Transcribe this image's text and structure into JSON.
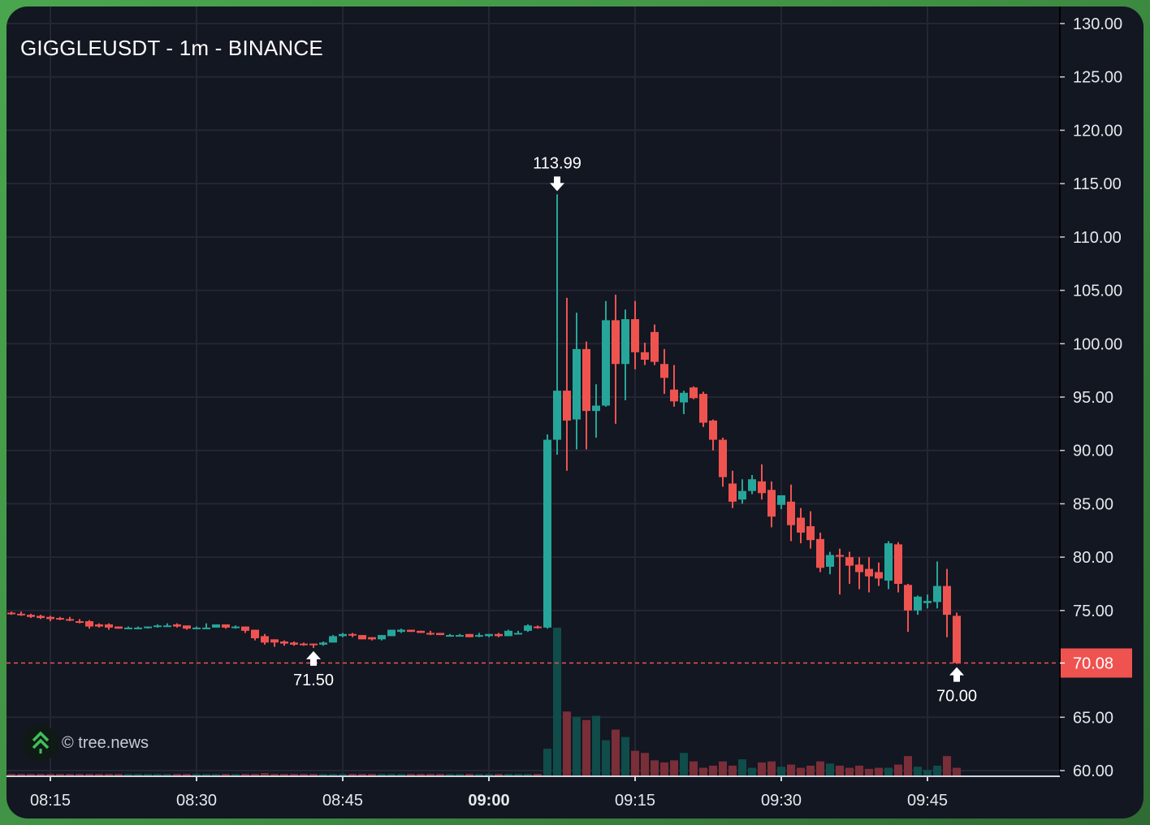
{
  "header": {
    "title": "GIGGLEUSDT - 1m - BINANCE"
  },
  "watermark": {
    "text": "© tree.news",
    "icon": "tree-chevrons-icon",
    "icon_color": "#3fbf5a"
  },
  "colors": {
    "background": "#131722",
    "grid": "#242733",
    "up": "#26a69a",
    "down": "#ef5350",
    "volume_up": "#0f4c4a",
    "volume_down": "#7a2e38",
    "last_price_line": "#ef5350",
    "outer_frame": "#4aa64e"
  },
  "price_axis": {
    "labels": [
      "130.00",
      "125.00",
      "120.00",
      "115.00",
      "110.00",
      "105.00",
      "100.00",
      "95.00",
      "90.00",
      "85.00",
      "80.00",
      "75.00",
      "65.00",
      "60.00"
    ],
    "last_price_label": "70.08"
  },
  "time_axis": {
    "labels": [
      {
        "text": "08:15",
        "bold": false
      },
      {
        "text": "08:30",
        "bold": false
      },
      {
        "text": "08:45",
        "bold": false
      },
      {
        "text": "09:00",
        "bold": true
      },
      {
        "text": "09:15",
        "bold": false
      },
      {
        "text": "09:30",
        "bold": false
      },
      {
        "text": "09:45",
        "bold": false
      }
    ]
  },
  "annotations": {
    "high": {
      "label": "113.99",
      "time": "09:07"
    },
    "low_left": {
      "label": "71.50",
      "time": "08:42"
    },
    "low_right": {
      "label": "70.00",
      "time": "09:48"
    }
  },
  "chart_data": {
    "type": "candlestick",
    "title": "GIGGLEUSDT - 1m - BINANCE",
    "xlabel": "",
    "ylabel": "",
    "ylim": [
      60,
      130
    ],
    "y_ticks": [
      60,
      65,
      70,
      75,
      80,
      85,
      90,
      95,
      100,
      105,
      110,
      115,
      120,
      125,
      130
    ],
    "x_ticks": [
      "08:15",
      "08:30",
      "08:45",
      "09:00",
      "09:15",
      "09:30",
      "09:45"
    ],
    "grid": true,
    "last_price": 70.08,
    "annotations": [
      {
        "text": "113.99",
        "type": "high-marker",
        "time": "09:07"
      },
      {
        "text": "71.50",
        "type": "low-marker",
        "time": "08:42"
      },
      {
        "text": "70.00",
        "type": "low-marker",
        "time": "09:48"
      }
    ],
    "candles": [
      {
        "t": "08:11",
        "o": 74.8,
        "h": 74.9,
        "c": 74.7,
        "l": 74.6,
        "v": 1
      },
      {
        "t": "08:12",
        "o": 74.7,
        "h": 74.9,
        "c": 74.6,
        "l": 74.5,
        "v": 1
      },
      {
        "t": "08:13",
        "o": 74.6,
        "h": 74.7,
        "c": 74.4,
        "l": 74.3,
        "v": 1
      },
      {
        "t": "08:14",
        "o": 74.5,
        "h": 74.6,
        "c": 74.3,
        "l": 74.2,
        "v": 1
      },
      {
        "t": "08:15",
        "o": 74.4,
        "h": 74.5,
        "c": 74.2,
        "l": 74.0,
        "v": 1
      },
      {
        "t": "08:16",
        "o": 74.3,
        "h": 74.4,
        "c": 74.2,
        "l": 74.1,
        "v": 1
      },
      {
        "t": "08:17",
        "o": 74.2,
        "h": 74.4,
        "c": 74.1,
        "l": 74.0,
        "v": 1
      },
      {
        "t": "08:18",
        "o": 74.0,
        "h": 74.2,
        "c": 73.9,
        "l": 73.8,
        "v": 1
      },
      {
        "t": "08:19",
        "o": 74.0,
        "h": 74.1,
        "c": 73.5,
        "l": 73.3,
        "v": 2
      },
      {
        "t": "08:20",
        "o": 73.7,
        "h": 73.8,
        "c": 73.5,
        "l": 73.4,
        "v": 1
      },
      {
        "t": "08:21",
        "o": 73.7,
        "h": 73.8,
        "c": 73.4,
        "l": 73.2,
        "v": 1
      },
      {
        "t": "08:22",
        "o": 73.5,
        "h": 73.5,
        "c": 73.3,
        "l": 73.3,
        "v": 1
      },
      {
        "t": "08:23",
        "o": 73.4,
        "h": 73.5,
        "c": 73.4,
        "l": 73.3,
        "v": 1
      },
      {
        "t": "08:24",
        "o": 73.4,
        "h": 73.5,
        "c": 73.4,
        "l": 73.3,
        "v": 1
      },
      {
        "t": "08:25",
        "o": 73.4,
        "h": 73.5,
        "c": 73.5,
        "l": 73.3,
        "v": 1
      },
      {
        "t": "08:26",
        "o": 73.5,
        "h": 73.7,
        "c": 73.6,
        "l": 73.4,
        "v": 1
      },
      {
        "t": "08:27",
        "o": 73.5,
        "h": 73.8,
        "c": 73.6,
        "l": 73.5,
        "v": 1
      },
      {
        "t": "08:28",
        "o": 73.7,
        "h": 73.8,
        "c": 73.5,
        "l": 73.4,
        "v": 1
      },
      {
        "t": "08:29",
        "o": 73.6,
        "h": 73.6,
        "c": 73.3,
        "l": 73.2,
        "v": 1
      },
      {
        "t": "08:30",
        "o": 73.3,
        "h": 73.5,
        "c": 73.4,
        "l": 73.3,
        "v": 1
      },
      {
        "t": "08:31",
        "o": 73.4,
        "h": 73.8,
        "c": 73.4,
        "l": 73.3,
        "v": 1
      },
      {
        "t": "08:32",
        "o": 73.4,
        "h": 73.7,
        "c": 73.7,
        "l": 73.4,
        "v": 1
      },
      {
        "t": "08:33",
        "o": 73.7,
        "h": 73.7,
        "c": 73.4,
        "l": 73.3,
        "v": 1
      },
      {
        "t": "08:34",
        "o": 73.4,
        "h": 73.6,
        "c": 73.5,
        "l": 73.3,
        "v": 1
      },
      {
        "t": "08:35",
        "o": 73.5,
        "h": 73.5,
        "c": 73.1,
        "l": 72.9,
        "v": 1
      },
      {
        "t": "08:36",
        "o": 73.2,
        "h": 73.2,
        "c": 72.4,
        "l": 72.2,
        "v": 2
      },
      {
        "t": "08:37",
        "o": 72.6,
        "h": 72.8,
        "c": 72.0,
        "l": 71.8,
        "v": 3
      },
      {
        "t": "08:38",
        "o": 72.3,
        "h": 72.3,
        "c": 72.0,
        "l": 71.6,
        "v": 2
      },
      {
        "t": "08:39",
        "o": 72.1,
        "h": 72.2,
        "c": 71.9,
        "l": 71.7,
        "v": 2
      },
      {
        "t": "08:40",
        "o": 72.0,
        "h": 72.1,
        "c": 71.8,
        "l": 71.7,
        "v": 1
      },
      {
        "t": "08:41",
        "o": 71.9,
        "h": 72.0,
        "c": 71.8,
        "l": 71.7,
        "v": 1
      },
      {
        "t": "08:42",
        "o": 71.9,
        "h": 71.9,
        "c": 71.8,
        "l": 71.5,
        "v": 1
      },
      {
        "t": "08:43",
        "o": 71.8,
        "h": 72.1,
        "c": 72.0,
        "l": 71.7,
        "v": 1
      },
      {
        "t": "08:44",
        "o": 72.0,
        "h": 72.7,
        "c": 72.6,
        "l": 72.0,
        "v": 2
      },
      {
        "t": "08:45",
        "o": 72.6,
        "h": 72.9,
        "c": 72.8,
        "l": 72.5,
        "v": 2
      },
      {
        "t": "08:46",
        "o": 72.8,
        "h": 72.9,
        "c": 72.7,
        "l": 72.5,
        "v": 1
      },
      {
        "t": "08:47",
        "o": 72.7,
        "h": 72.7,
        "c": 72.3,
        "l": 72.3,
        "v": 1
      },
      {
        "t": "08:48",
        "o": 72.5,
        "h": 72.5,
        "c": 72.3,
        "l": 72.2,
        "v": 1
      },
      {
        "t": "08:49",
        "o": 72.3,
        "h": 72.7,
        "c": 72.7,
        "l": 72.2,
        "v": 1
      },
      {
        "t": "08:50",
        "o": 72.6,
        "h": 73.2,
        "c": 73.2,
        "l": 72.6,
        "v": 1
      },
      {
        "t": "08:51",
        "o": 73.0,
        "h": 73.3,
        "c": 73.2,
        "l": 72.9,
        "v": 1
      },
      {
        "t": "08:52",
        "o": 73.2,
        "h": 73.2,
        "c": 73.0,
        "l": 73.0,
        "v": 1
      },
      {
        "t": "08:53",
        "o": 73.1,
        "h": 73.1,
        "c": 72.9,
        "l": 72.9,
        "v": 1
      },
      {
        "t": "08:54",
        "o": 72.9,
        "h": 73.1,
        "c": 72.8,
        "l": 72.7,
        "v": 1
      },
      {
        "t": "08:55",
        "o": 72.9,
        "h": 72.9,
        "c": 72.7,
        "l": 72.7,
        "v": 1
      },
      {
        "t": "08:56",
        "o": 72.7,
        "h": 72.8,
        "c": 72.7,
        "l": 72.6,
        "v": 1
      },
      {
        "t": "08:57",
        "o": 72.6,
        "h": 72.8,
        "c": 72.7,
        "l": 72.6,
        "v": 1
      },
      {
        "t": "08:58",
        "o": 72.8,
        "h": 72.8,
        "c": 72.5,
        "l": 72.5,
        "v": 1
      },
      {
        "t": "08:59",
        "o": 72.6,
        "h": 72.9,
        "c": 72.7,
        "l": 72.5,
        "v": 1
      },
      {
        "t": "09:00",
        "o": 72.6,
        "h": 72.8,
        "c": 72.8,
        "l": 72.5,
        "v": 1
      },
      {
        "t": "09:01",
        "o": 72.8,
        "h": 72.9,
        "c": 72.6,
        "l": 72.5,
        "v": 1
      },
      {
        "t": "09:02",
        "o": 72.6,
        "h": 73.2,
        "c": 73.1,
        "l": 72.6,
        "v": 1
      },
      {
        "t": "09:03",
        "o": 72.9,
        "h": 73.1,
        "c": 72.9,
        "l": 72.8,
        "v": 1
      },
      {
        "t": "09:04",
        "o": 73.1,
        "h": 73.7,
        "c": 73.6,
        "l": 73.0,
        "v": 2
      },
      {
        "t": "09:05",
        "o": 73.5,
        "h": 73.6,
        "c": 73.4,
        "l": 73.3,
        "v": 1
      },
      {
        "t": "09:06",
        "o": 73.4,
        "h": 91.5,
        "c": 91.0,
        "l": 73.3,
        "v": 26
      },
      {
        "t": "09:07",
        "o": 91.0,
        "h": 113.99,
        "c": 95.6,
        "l": 89.6,
        "v": 140
      },
      {
        "t": "09:08",
        "o": 95.6,
        "h": 104.3,
        "c": 92.8,
        "l": 88.1,
        "v": 61
      },
      {
        "t": "09:09",
        "o": 92.9,
        "h": 102.9,
        "c": 99.5,
        "l": 90.1,
        "v": 56
      },
      {
        "t": "09:10",
        "o": 99.5,
        "h": 100.2,
        "c": 93.7,
        "l": 90.1,
        "v": 53
      },
      {
        "t": "09:11",
        "o": 93.7,
        "h": 96.2,
        "c": 94.2,
        "l": 91.2,
        "v": 57
      },
      {
        "t": "09:12",
        "o": 94.2,
        "h": 104.0,
        "c": 102.2,
        "l": 94.1,
        "v": 34
      },
      {
        "t": "09:13",
        "o": 102.2,
        "h": 104.6,
        "c": 98.1,
        "l": 92.5,
        "v": 44
      },
      {
        "t": "09:14",
        "o": 98.1,
        "h": 103.2,
        "c": 102.3,
        "l": 94.7,
        "v": 37
      },
      {
        "t": "09:15",
        "o": 102.3,
        "h": 104.0,
        "c": 99.2,
        "l": 97.6,
        "v": 24
      },
      {
        "t": "09:16",
        "o": 99.2,
        "h": 100.1,
        "c": 98.5,
        "l": 98.0,
        "v": 22
      },
      {
        "t": "09:17",
        "o": 101.1,
        "h": 101.8,
        "c": 98.3,
        "l": 98.0,
        "v": 15
      },
      {
        "t": "09:18",
        "o": 98.1,
        "h": 99.5,
        "c": 96.8,
        "l": 95.3,
        "v": 13
      },
      {
        "t": "09:19",
        "o": 95.7,
        "h": 98.0,
        "c": 94.6,
        "l": 94.1,
        "v": 15
      },
      {
        "t": "09:20",
        "o": 94.5,
        "h": 95.6,
        "c": 95.4,
        "l": 93.4,
        "v": 22
      },
      {
        "t": "09:21",
        "o": 95.9,
        "h": 96.0,
        "c": 94.9,
        "l": 94.8,
        "v": 14
      },
      {
        "t": "09:22",
        "o": 95.3,
        "h": 95.5,
        "c": 92.6,
        "l": 92.2,
        "v": 8
      },
      {
        "t": "09:23",
        "o": 92.8,
        "h": 92.9,
        "c": 91.0,
        "l": 90.0,
        "v": 10
      },
      {
        "t": "09:24",
        "o": 91.0,
        "h": 91.2,
        "c": 87.5,
        "l": 86.6,
        "v": 14
      },
      {
        "t": "09:25",
        "o": 86.9,
        "h": 88.1,
        "c": 85.2,
        "l": 84.6,
        "v": 10
      },
      {
        "t": "09:26",
        "o": 85.4,
        "h": 87.3,
        "c": 86.2,
        "l": 85.0,
        "v": 16
      },
      {
        "t": "09:27",
        "o": 86.2,
        "h": 87.7,
        "c": 87.3,
        "l": 85.9,
        "v": 8
      },
      {
        "t": "09:28",
        "o": 87.1,
        "h": 88.7,
        "c": 86.0,
        "l": 85.4,
        "v": 13
      },
      {
        "t": "09:29",
        "o": 86.3,
        "h": 87.1,
        "c": 83.8,
        "l": 82.8,
        "v": 14
      },
      {
        "t": "09:30",
        "o": 84.9,
        "h": 85.5,
        "c": 85.8,
        "l": 84.5,
        "v": 9
      },
      {
        "t": "09:31",
        "o": 85.2,
        "h": 86.8,
        "c": 83.0,
        "l": 81.5,
        "v": 11
      },
      {
        "t": "09:32",
        "o": 83.7,
        "h": 84.6,
        "c": 82.3,
        "l": 81.3,
        "v": 8
      },
      {
        "t": "09:33",
        "o": 82.9,
        "h": 84.3,
        "c": 81.6,
        "l": 80.8,
        "v": 10
      },
      {
        "t": "09:34",
        "o": 81.7,
        "h": 82.3,
        "c": 79.0,
        "l": 78.6,
        "v": 14
      },
      {
        "t": "09:35",
        "o": 79.1,
        "h": 80.5,
        "c": 80.2,
        "l": 78.4,
        "v": 12
      },
      {
        "t": "09:36",
        "o": 80.2,
        "h": 80.8,
        "c": 80.1,
        "l": 76.5,
        "v": 10
      },
      {
        "t": "09:37",
        "o": 80.0,
        "h": 80.5,
        "c": 79.2,
        "l": 77.5,
        "v": 8
      },
      {
        "t": "09:38",
        "o": 79.3,
        "h": 80.0,
        "c": 78.6,
        "l": 77.0,
        "v": 10
      },
      {
        "t": "09:39",
        "o": 78.9,
        "h": 80.0,
        "c": 78.2,
        "l": 76.7,
        "v": 7
      },
      {
        "t": "09:40",
        "o": 78.6,
        "h": 79.5,
        "c": 78.0,
        "l": 77.3,
        "v": 8
      },
      {
        "t": "09:41",
        "o": 77.8,
        "h": 81.5,
        "c": 81.3,
        "l": 77.0,
        "v": 8
      },
      {
        "t": "09:42",
        "o": 81.2,
        "h": 81.4,
        "c": 77.5,
        "l": 76.7,
        "v": 11
      },
      {
        "t": "09:43",
        "o": 77.4,
        "h": 77.5,
        "c": 75.0,
        "l": 73.0,
        "v": 19
      },
      {
        "t": "09:44",
        "o": 75.0,
        "h": 76.4,
        "c": 76.3,
        "l": 74.6,
        "v": 9
      },
      {
        "t": "09:45",
        "o": 75.7,
        "h": 76.5,
        "c": 75.9,
        "l": 75.2,
        "v": 6
      },
      {
        "t": "09:46",
        "o": 75.8,
        "h": 79.6,
        "c": 77.3,
        "l": 75.2,
        "v": 10
      },
      {
        "t": "09:47",
        "o": 77.3,
        "h": 78.9,
        "c": 74.6,
        "l": 72.5,
        "v": 19
      },
      {
        "t": "09:48",
        "o": 74.5,
        "h": 74.8,
        "c": 70.08,
        "l": 70.0,
        "v": 8
      }
    ]
  }
}
